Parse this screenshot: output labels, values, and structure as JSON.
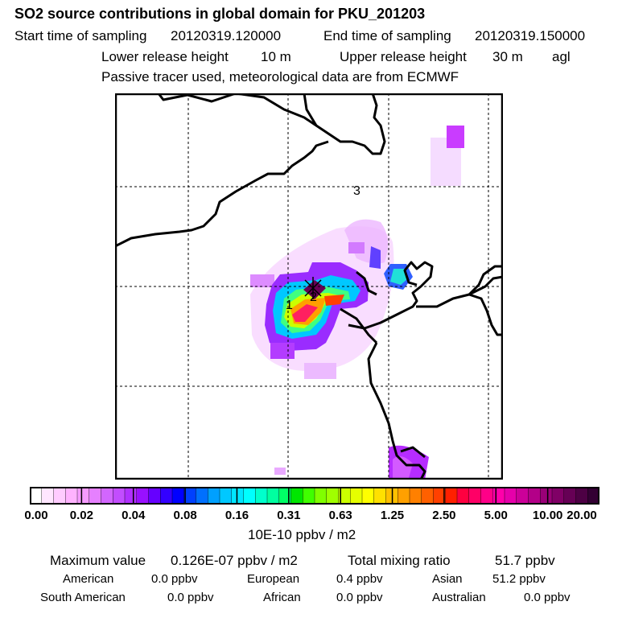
{
  "header": {
    "title": "SO2 source contributions in global domain for PKU_201203",
    "start_label": "Start time of sampling",
    "start_value": "20120319.120000",
    "end_label": "End time of sampling",
    "end_value": "20120319.150000",
    "lower_label": "Lower release height",
    "lower_value": "10 m",
    "upper_label": "Upper release height",
    "upper_value": "30 m",
    "agl": "agl",
    "tracer_note": "Passive tracer used, meteorological data are from ECMWF"
  },
  "map": {
    "labels": {
      "one": "1",
      "two": "2",
      "three": "3"
    }
  },
  "colorbar": {
    "unit": "10E-10 ppbv / m2",
    "ticks": [
      "0.00",
      "0.02",
      "0.04",
      "0.08",
      "0.16",
      "0.31",
      "0.63",
      "1.25",
      "2.50",
      "5.00",
      "10.00",
      "20.00"
    ],
    "colors": [
      "#ffffff",
      "#ffe6ff",
      "#ffccff",
      "#ffb3ff",
      "#f59bff",
      "#e680ff",
      "#d266ff",
      "#c24dff",
      "#b030ff",
      "#9910ff",
      "#6600ff",
      "#3300ff",
      "#0000ff",
      "#0040ff",
      "#0070ff",
      "#00a0ff",
      "#00c8ff",
      "#00e6ff",
      "#00ffff",
      "#00ffcc",
      "#00ffa0",
      "#00ff66",
      "#00e600",
      "#40ff00",
      "#80ff00",
      "#a0ff00",
      "#ccff00",
      "#e6ff00",
      "#ffff00",
      "#ffe000",
      "#ffc000",
      "#ffa000",
      "#ff8000",
      "#ff6000",
      "#ff4000",
      "#ff2000",
      "#ff0040",
      "#ff0066",
      "#ff0088",
      "#ff00aa",
      "#e600aa",
      "#cc0099",
      "#b30088",
      "#990077",
      "#800066",
      "#660055",
      "#4d0044",
      "#330033"
    ]
  },
  "summary": {
    "max_label": "Maximum value",
    "max_value": "0.126E-07 ppbv / m2",
    "total_label": "Total mixing ratio",
    "total_value": "51.7 ppbv",
    "regions": [
      {
        "name": "American",
        "value": "0.0 ppbv"
      },
      {
        "name": "European",
        "value": "0.4 ppbv"
      },
      {
        "name": "Asian",
        "value": "51.2 ppbv"
      },
      {
        "name": "South American",
        "value": "0.0 ppbv"
      },
      {
        "name": "African",
        "value": "0.0 ppbv"
      },
      {
        "name": "Australian",
        "value": "0.0 ppbv"
      }
    ]
  }
}
